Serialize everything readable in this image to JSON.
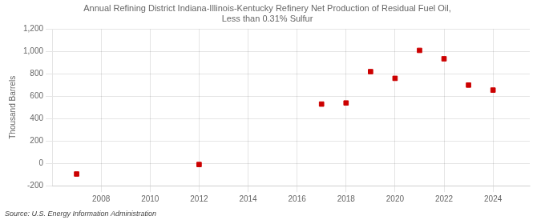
{
  "chart_data": {
    "type": "scatter",
    "title": "Annual Refining District Indiana-Illinois-Kentucky Refinery Net Production of Residual Fuel Oil,\nLess than 0.31% Sulfur",
    "ylabel": "Thousand Barrels",
    "source": "Source: U.S. Energy Information Administration",
    "x": [
      2007,
      2012,
      2017,
      2018,
      2019,
      2020,
      2021,
      2022,
      2023,
      2024
    ],
    "values": [
      -95,
      -10,
      530,
      540,
      820,
      760,
      1010,
      935,
      700,
      655
    ],
    "color": "#cc0000",
    "marker": "square",
    "xlim": [
      2006,
      2025.5
    ],
    "xticks": [
      2008,
      2010,
      2012,
      2014,
      2016,
      2018,
      2020,
      2022,
      2024
    ],
    "ylim": [
      -200,
      1200
    ],
    "yticks": [
      -200,
      0,
      200,
      400,
      600,
      800,
      {
        "value": 1000,
        "label": "1,000"
      },
      {
        "value": 1200,
        "label": "1,200"
      }
    ],
    "grid": true
  }
}
